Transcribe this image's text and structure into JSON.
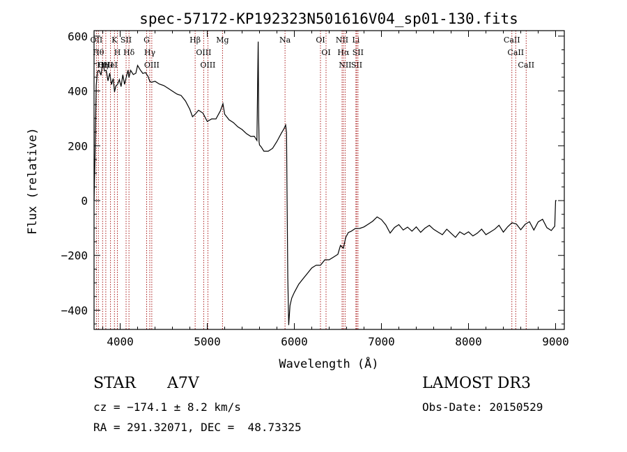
{
  "chart_data": {
    "type": "line",
    "title": "spec-57172-KP192323N501616V04_sp01-130.fits",
    "xlabel": "Wavelength (Å)",
    "ylabel": "Flux (relative)",
    "xlim": [
      3700,
      9100
    ],
    "ylim": [
      -470,
      620
    ],
    "xticks": [
      4000,
      5000,
      6000,
      7000,
      8000,
      9000
    ],
    "yticks": [
      -400,
      -200,
      0,
      200,
      400,
      600
    ],
    "xtick_labels": [
      "4000",
      "5000",
      "6000",
      "7000",
      "8000",
      "9000"
    ],
    "ytick_labels": [
      "−400",
      "−200",
      "0",
      "200",
      "400",
      "600"
    ],
    "series": [
      {
        "name": "spectrum",
        "x": [
          3700,
          3712,
          3725,
          3740,
          3760,
          3780,
          3800,
          3820,
          3840,
          3860,
          3880,
          3900,
          3920,
          3935,
          3950,
          3970,
          3990,
          4010,
          4030,
          4050,
          4070,
          4090,
          4101,
          4120,
          4150,
          4180,
          4200,
          4230,
          4260,
          4290,
          4320,
          4340,
          4360,
          4400,
          4450,
          4500,
          4550,
          4600,
          4650,
          4700,
          4750,
          4800,
          4830,
          4861,
          4900,
          4950,
          5000,
          5050,
          5100,
          5150,
          5180,
          5200,
          5250,
          5300,
          5350,
          5400,
          5450,
          5500,
          5540,
          5570,
          5580,
          5585,
          5590,
          5595,
          5600,
          5620,
          5650,
          5700,
          5750,
          5800,
          5850,
          5880,
          5900,
          5910,
          5915,
          5925,
          5935,
          5950,
          5970,
          6000,
          6050,
          6100,
          6150,
          6200,
          6250,
          6300,
          6350,
          6400,
          6450,
          6500,
          6530,
          6563,
          6590,
          6620,
          6650,
          6700,
          6750,
          6800,
          6850,
          6900,
          6950,
          7000,
          7050,
          7100,
          7150,
          7200,
          7250,
          7300,
          7350,
          7400,
          7450,
          7500,
          7550,
          7600,
          7650,
          7700,
          7750,
          7800,
          7850,
          7900,
          7950,
          8000,
          8050,
          8100,
          8150,
          8200,
          8250,
          8300,
          8350,
          8400,
          8450,
          8500,
          8550,
          8600,
          8650,
          8700,
          8750,
          8800,
          8850,
          8900,
          8950,
          8990,
          9000,
          9010
        ],
        "values": [
          0,
          180,
          420,
          470,
          480,
          460,
          500,
          470,
          480,
          440,
          460,
          420,
          450,
          400,
          420,
          430,
          440,
          410,
          460,
          430,
          450,
          470,
          450,
          470,
          460,
          470,
          490,
          480,
          470,
          470,
          450,
          440,
          435,
          430,
          420,
          415,
          405,
          395,
          385,
          380,
          360,
          330,
          300,
          310,
          330,
          320,
          290,
          300,
          300,
          330,
          350,
          320,
          300,
          290,
          275,
          265,
          250,
          240,
          230,
          220,
          470,
          580,
          300,
          220,
          200,
          190,
          175,
          175,
          185,
          210,
          240,
          260,
          270,
          250,
          50,
          -280,
          -450,
          -380,
          -350,
          -330,
          -300,
          -280,
          -260,
          -240,
          -230,
          -230,
          -210,
          -210,
          -200,
          -190,
          -160,
          -170,
          -140,
          -120,
          -110,
          -100,
          -100,
          -95,
          -85,
          -75,
          -60,
          -70,
          -90,
          -120,
          -100,
          -90,
          -110,
          -100,
          -115,
          -100,
          -120,
          -105,
          -95,
          -110,
          -120,
          -130,
          -110,
          -125,
          -140,
          -120,
          -130,
          -120,
          -135,
          -125,
          -110,
          -130,
          -120,
          -110,
          -95,
          -120,
          -100,
          -85,
          -90,
          -110,
          -90,
          -80,
          -110,
          -80,
          -70,
          -100,
          -110,
          -90,
          0,
          0
        ]
      }
    ],
    "line_markers": [
      {
        "wavelength": 3727,
        "label": "OII"
      },
      {
        "wavelength": 3750,
        "label": "Hθ"
      },
      {
        "wavelength": 3798,
        "label": "Hη"
      },
      {
        "wavelength": 3835,
        "label": "OIII"
      },
      {
        "wavelength": 3889,
        "label": "HeI"
      },
      {
        "wavelength": 3934,
        "label": "K"
      },
      {
        "wavelength": 3968,
        "label": "H"
      },
      {
        "wavelength": 4068,
        "label": "SII"
      },
      {
        "wavelength": 4101,
        "label": "Hδ"
      },
      {
        "wavelength": 4304,
        "label": "G"
      },
      {
        "wavelength": 4340,
        "label": "Hγ"
      },
      {
        "wavelength": 4363,
        "label": "OIII"
      },
      {
        "wavelength": 4861,
        "label": "Hβ"
      },
      {
        "wavelength": 4959,
        "label": "OIII"
      },
      {
        "wavelength": 5007,
        "label": "OIII"
      },
      {
        "wavelength": 5175,
        "label": "Mg"
      },
      {
        "wavelength": 5893,
        "label": "Na"
      },
      {
        "wavelength": 6300,
        "label": "OI"
      },
      {
        "wavelength": 6364,
        "label": "OI"
      },
      {
        "wavelength": 6548,
        "label": "NII"
      },
      {
        "wavelength": 6563,
        "label": "Hα"
      },
      {
        "wavelength": 6583,
        "label": "NII"
      },
      {
        "wavelength": 6707,
        "label": "Li"
      },
      {
        "wavelength": 6716,
        "label": "SII"
      },
      {
        "wavelength": 6731,
        "label": "SII"
      },
      {
        "wavelength": 8498,
        "label": "CaII"
      },
      {
        "wavelength": 8542,
        "label": "CaII"
      },
      {
        "wavelength": 8662,
        "label": "CaII"
      }
    ]
  },
  "info": {
    "object_class": "STAR",
    "subclass": "A7V",
    "survey": "LAMOST DR3",
    "cz": "cz = −174.1 ± 8.2 km/s",
    "obs_date": "Obs-Date: 20150529",
    "coords": "RA = 291.32071, DEC =  48.73325"
  }
}
